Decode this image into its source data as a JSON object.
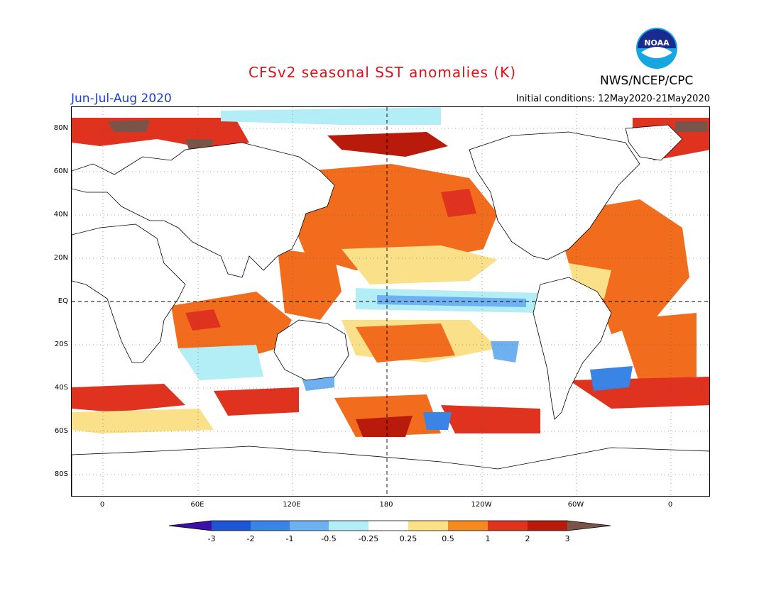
{
  "title": "CFSv2 seasonal SST anomalies (K)",
  "agency": "NWS/NCEP/CPC",
  "logo_text": "NOAA",
  "period": "Jun-Jul-Aug 2020",
  "initial_conditions": "Initial conditions: 12May2020-21May2020",
  "map": {
    "lat_labels": [
      "80N",
      "60N",
      "40N",
      "20N",
      "EQ",
      "20S",
      "40S",
      "60S",
      "80S"
    ],
    "lon_labels": [
      "0",
      "60E",
      "120E",
      "180",
      "120W",
      "60W",
      "0"
    ],
    "grid": "dotted",
    "dashed_lines": [
      "EQ",
      "180"
    ]
  },
  "colorbar": {
    "labels": [
      "-3",
      "-2",
      "-1",
      "-0.5",
      "-0.25",
      "0.25",
      "0.5",
      "1",
      "2",
      "3"
    ],
    "colors": [
      "#3b10a8",
      "#1f55d2",
      "#3a84e6",
      "#6fb0f0",
      "#b3eef6",
      "#ffffff",
      "#fbe08a",
      "#f58a1f",
      "#e0331f",
      "#b81a0c",
      "#7a5448"
    ]
  },
  "anomaly_colors": {
    "strong_warm": "#b81a0c",
    "warm": "#e0331f",
    "mod_warm": "#f26c1e",
    "weak_warm": "#fbe08a",
    "extreme_warm": "#7a5448",
    "weak_cool": "#b3eef6",
    "mod_cool": "#6fb0f0",
    "cool": "#3a84e6"
  }
}
